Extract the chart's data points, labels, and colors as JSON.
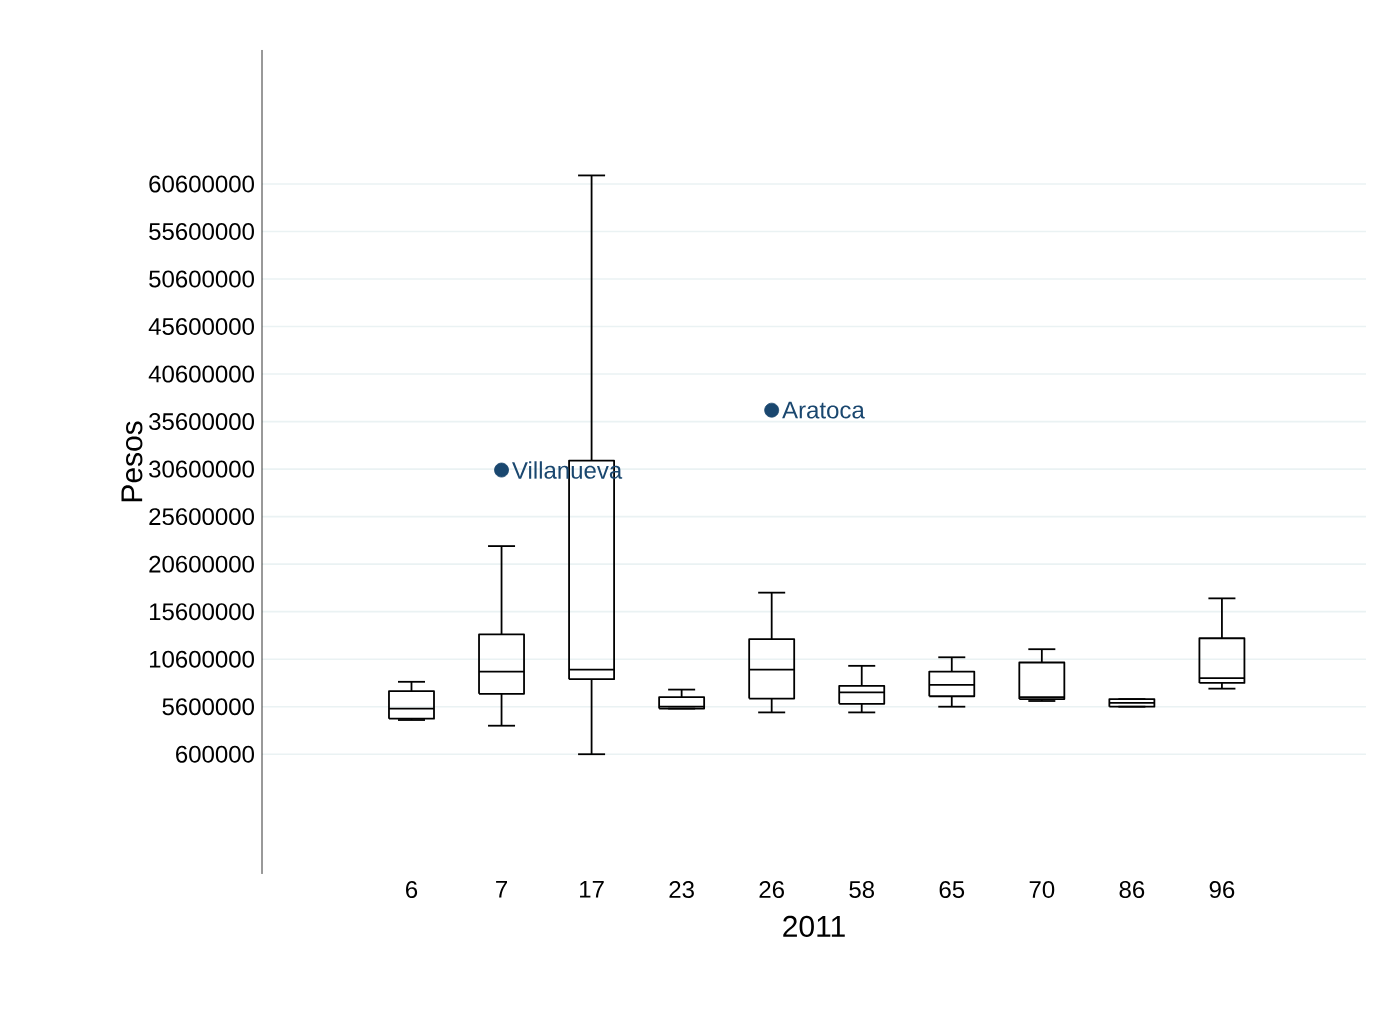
{
  "chart_data": {
    "type": "box",
    "xlabel": "2011",
    "ylabel": "Pesos",
    "categories": [
      "6",
      "7",
      "17",
      "23",
      "26",
      "58",
      "65",
      "70",
      "86",
      "96"
    ],
    "boxes": [
      {
        "low": 4200000,
        "q1": 4340000,
        "median": 5400000,
        "q3": 7230000,
        "high": 8220000
      },
      {
        "low": 3600000,
        "q1": 6950000,
        "median": 9300000,
        "q3": 13200000,
        "high": 22500000
      },
      {
        "low": 600000,
        "q1": 8500000,
        "median": 9500000,
        "q3": 31500000,
        "high": 61500000
      },
      {
        "low": 5400000,
        "q1": 5400000,
        "median": 5600000,
        "q3": 6600000,
        "high": 7400000
      },
      {
        "low": 5000000,
        "q1": 6450000,
        "median": 9500000,
        "q3": 12700000,
        "high": 17600000
      },
      {
        "low": 5000000,
        "q1": 5900000,
        "median": 7100000,
        "q3": 7800000,
        "high": 9900000
      },
      {
        "low": 5600000,
        "q1": 6700000,
        "median": 7900000,
        "q3": 9300000,
        "high": 10800000
      },
      {
        "low": 6200000,
        "q1": 6400000,
        "median": 6600000,
        "q3": 10250000,
        "high": 11650000
      },
      {
        "low": 5600000,
        "q1": 5600000,
        "median": 6000000,
        "q3": 6400000,
        "high": 6400000
      },
      {
        "low": 7500000,
        "q1": 8100000,
        "median": 8600000,
        "q3": 12800000,
        "high": 17000000
      }
    ],
    "color": "#000000",
    "series": [
      {
        "type": "scatter",
        "x": [
          "7",
          "26"
        ],
        "values": [
          30500000,
          36800000
        ],
        "color": "#1a476f",
        "marker": "circle"
      }
    ],
    "annotations": [
      {
        "text": "Villanueva",
        "x": "7",
        "y": 30500000
      },
      {
        "text": "Aratoca",
        "x": "26",
        "y": 36800000
      }
    ],
    "ylim": [
      -12000000,
      74700000
    ],
    "yticks": [
      600000,
      5600000,
      10600000,
      15600000,
      20600000,
      25600000,
      30600000,
      35600000,
      40600000,
      45600000,
      50600000,
      55600000,
      60600000
    ],
    "grid": "y"
  }
}
